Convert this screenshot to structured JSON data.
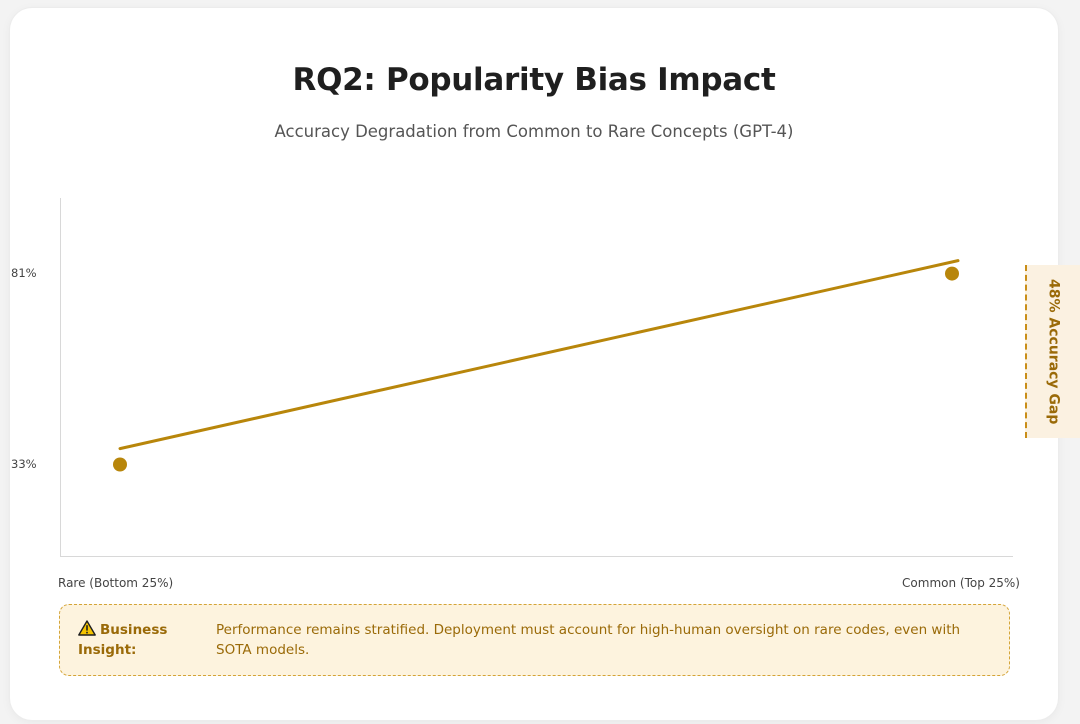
{
  "card": {
    "title": "RQ2: Popularity Bias Impact",
    "subtitle": "Accuracy Degradation from Common to Rare Concepts (GPT-4)"
  },
  "gap_callout": {
    "label": "48% Accuracy Gap"
  },
  "insight": {
    "icon": "warning-icon",
    "title": "Business Insight:",
    "text": "Performance remains stratified. Deployment must account for high-human oversight on rare codes, even with SOTA models."
  },
  "colors": {
    "accent": "#b8860b",
    "callout_bg": "#fdf3de",
    "callout_text": "#9a6a08"
  },
  "chart_data": {
    "type": "line",
    "title": "RQ2: Popularity Bias Impact",
    "subtitle": "Accuracy Degradation from Common to Rare Concepts (GPT-4)",
    "categories": [
      "Rare (Bottom 25%)",
      "Common (Top 25%)"
    ],
    "y_tick_labels": [
      "81%",
      "33%"
    ],
    "series": [
      {
        "values": [
          33,
          81
        ]
      }
    ],
    "trend_line": [
      37,
      84
    ],
    "ylim": [
      10,
      100
    ],
    "grid": false,
    "annotation": "48% Accuracy Gap"
  }
}
